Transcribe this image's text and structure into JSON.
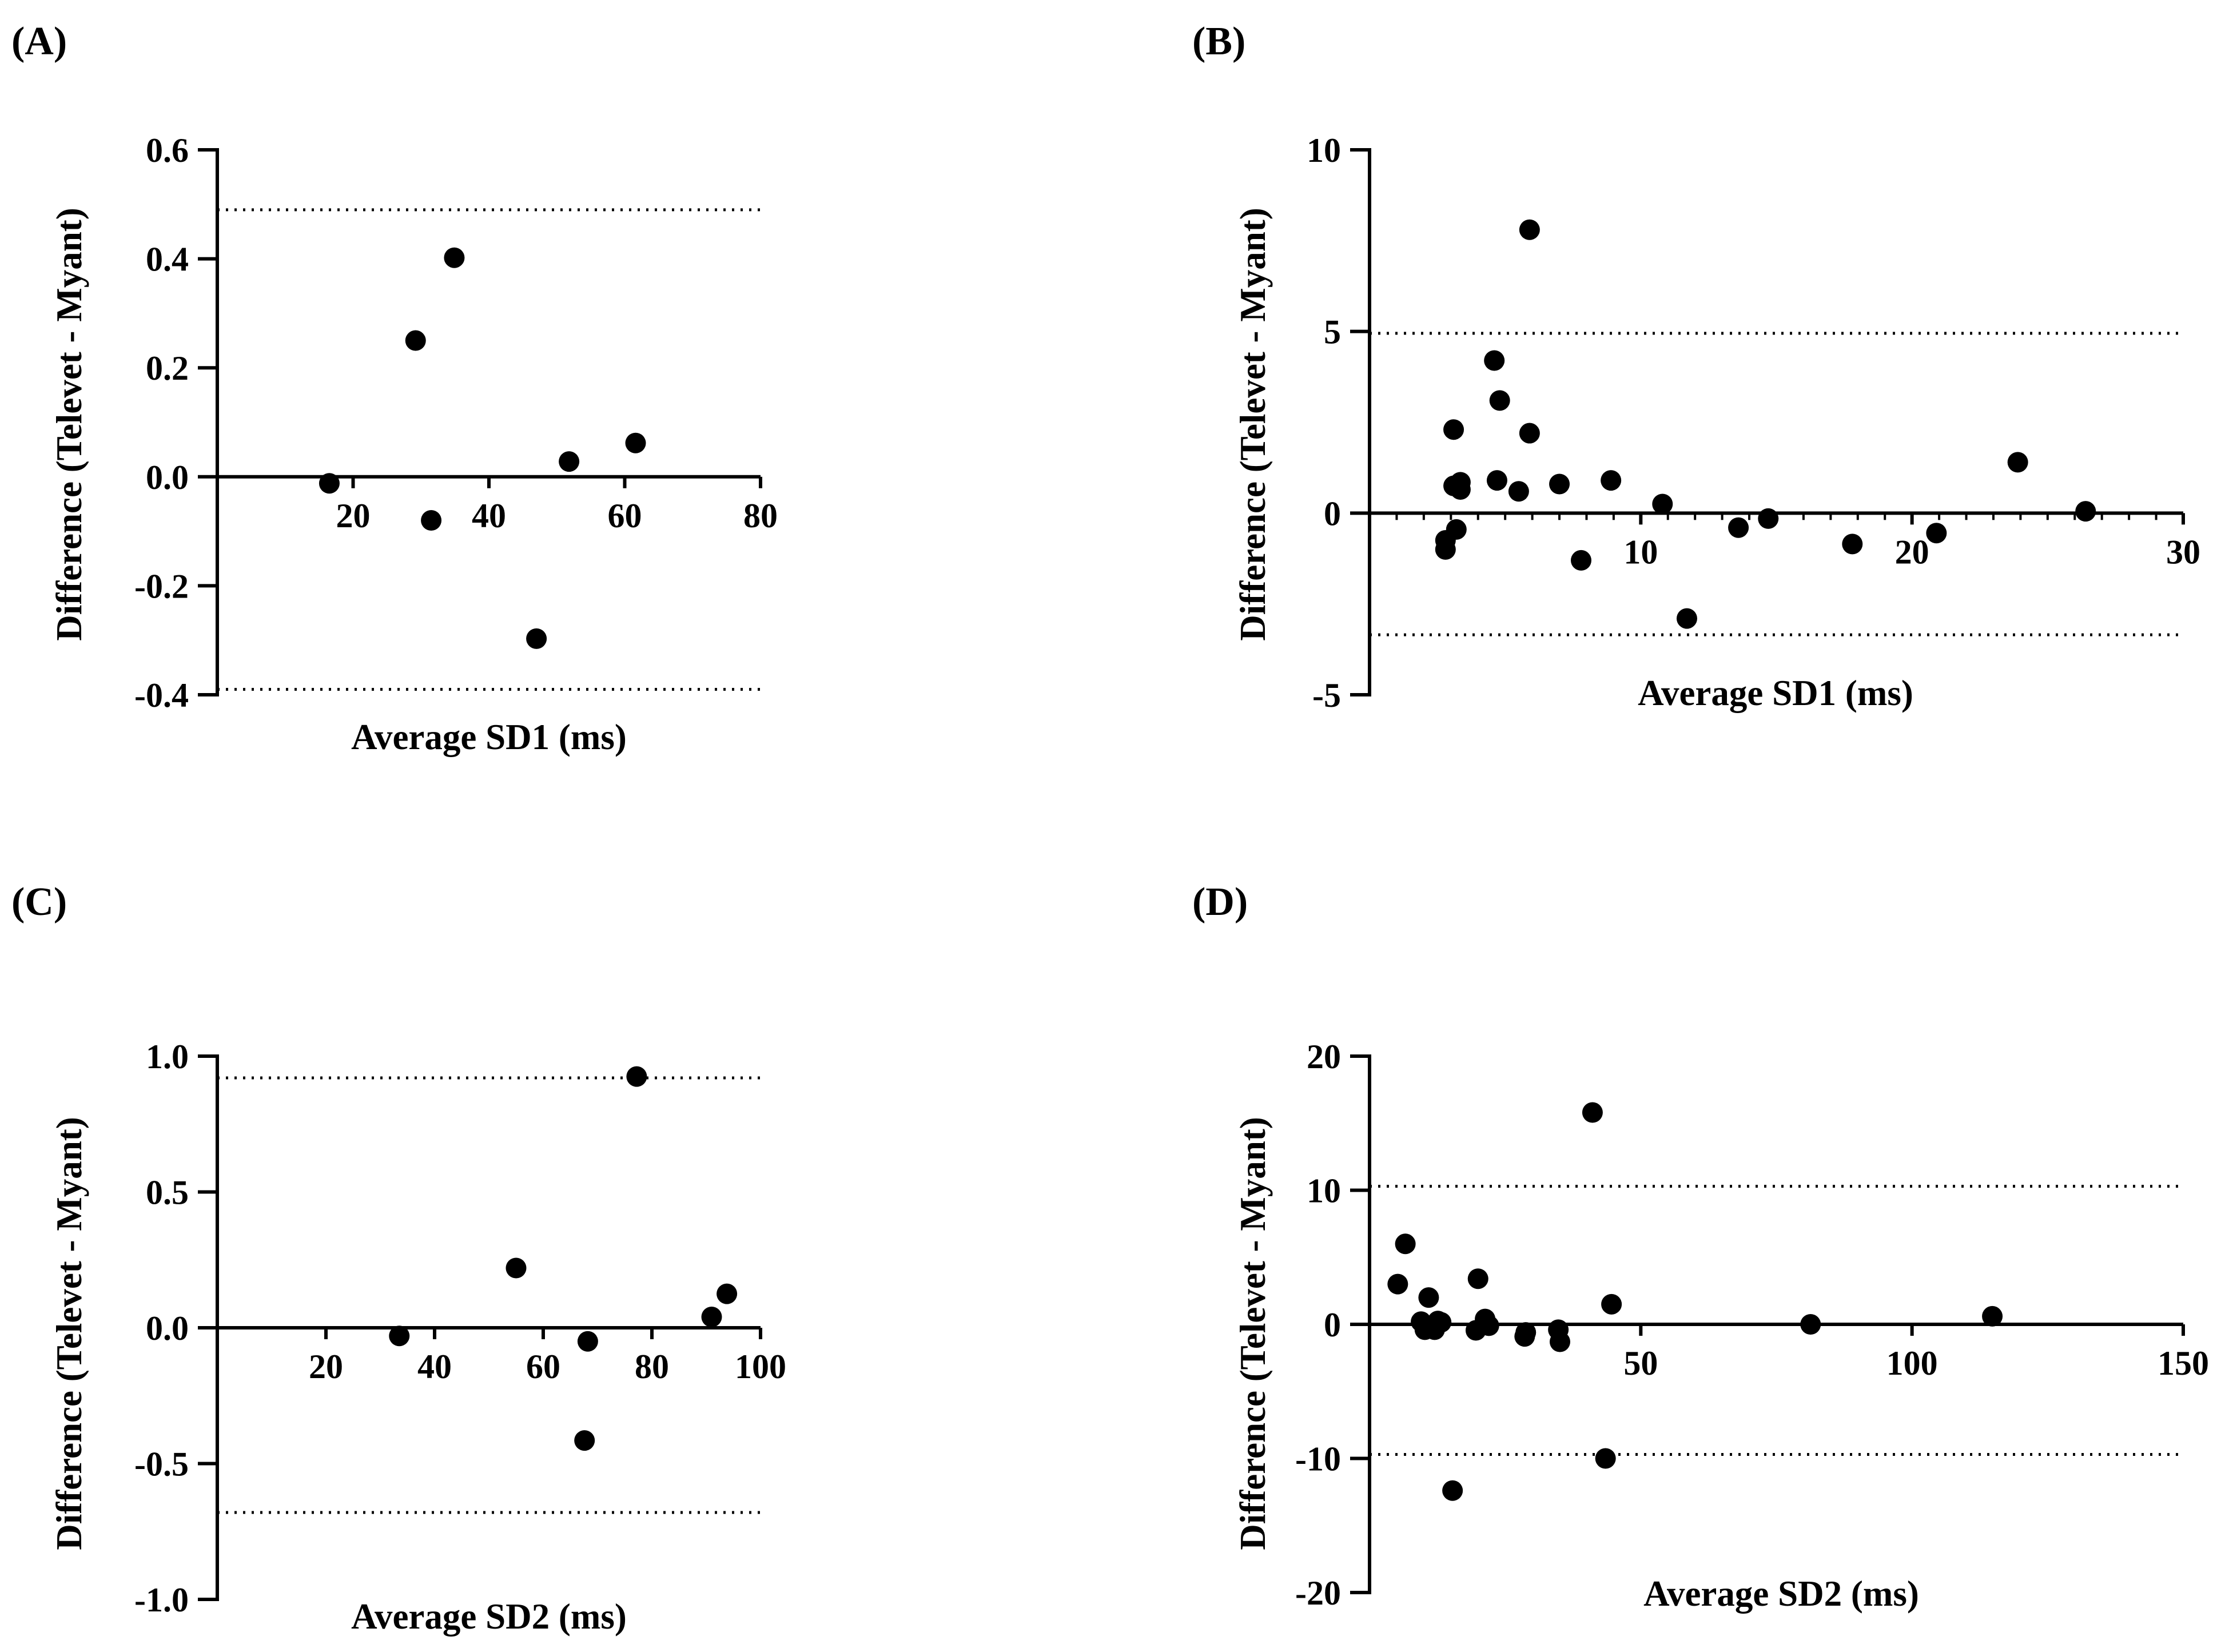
{
  "figure": {
    "background": "#ffffff",
    "ink": "#000000"
  },
  "chart_data": [
    {
      "panel": "(A)",
      "type": "scatter",
      "xlabel": "Average SD1 (ms)",
      "ylabel": "Difference (Televet - Myant)",
      "xlim": [
        0,
        80
      ],
      "ylim": [
        -0.4,
        0.6
      ],
      "xticks": [
        20,
        40,
        60,
        80
      ],
      "xtick_labels": [
        "20",
        "40",
        "60",
        "80"
      ],
      "yticks": [
        -0.4,
        -0.2,
        0.0,
        0.2,
        0.4,
        0.6
      ],
      "ytick_labels": [
        "-0.4",
        "-0.2",
        "0.0",
        "0.2",
        "0.4",
        "0.6"
      ],
      "minor_xticks": [],
      "reference_lines": {
        "bias": 0.0,
        "upper_loa": 0.49,
        "lower_loa": -0.39
      },
      "points": [
        {
          "x": 16.5,
          "y": -0.012
        },
        {
          "x": 29.2,
          "y": 0.25
        },
        {
          "x": 34.9,
          "y": 0.402
        },
        {
          "x": 31.5,
          "y": -0.08
        },
        {
          "x": 47.0,
          "y": -0.297
        },
        {
          "x": 51.8,
          "y": 0.028
        },
        {
          "x": 61.6,
          "y": 0.062
        }
      ]
    },
    {
      "panel": "(B)",
      "type": "scatter",
      "xlabel": "Average SD1 (ms)",
      "ylabel": "Difference (Televet - Myant)",
      "xlim": [
        0,
        30
      ],
      "ylim": [
        -5,
        10
      ],
      "xticks": [
        10,
        20,
        30
      ],
      "xtick_labels": [
        "10",
        "20",
        "30"
      ],
      "yticks": [
        -5,
        0,
        5,
        10
      ],
      "ytick_labels": [
        "-5",
        "0",
        "5",
        "10"
      ],
      "minor_xticks": [
        1,
        2,
        3,
        4,
        5,
        6,
        7,
        8,
        9,
        11,
        12,
        13,
        14,
        15,
        16,
        17,
        18,
        19,
        21,
        22,
        23,
        24,
        25,
        26,
        27,
        28,
        29
      ],
      "reference_lines": {
        "bias": 0.0,
        "upper_loa": 4.95,
        "lower_loa": -3.35
      },
      "points": [
        {
          "x": 2.8,
          "y": -0.75
        },
        {
          "x": 2.8,
          "y": -1.0
        },
        {
          "x": 3.1,
          "y": 2.3
        },
        {
          "x": 3.1,
          "y": 0.75
        },
        {
          "x": 3.35,
          "y": 0.85
        },
        {
          "x": 3.35,
          "y": 0.65
        },
        {
          "x": 3.2,
          "y": -0.45
        },
        {
          "x": 4.6,
          "y": 4.2
        },
        {
          "x": 4.8,
          "y": 3.1
        },
        {
          "x": 4.7,
          "y": 0.9
        },
        {
          "x": 5.5,
          "y": 0.6
        },
        {
          "x": 5.9,
          "y": 7.8
        },
        {
          "x": 5.9,
          "y": 2.2
        },
        {
          "x": 7.0,
          "y": 0.8
        },
        {
          "x": 7.8,
          "y": -1.3
        },
        {
          "x": 8.9,
          "y": 0.9
        },
        {
          "x": 10.8,
          "y": 0.25
        },
        {
          "x": 11.7,
          "y": -2.9
        },
        {
          "x": 13.6,
          "y": -0.4
        },
        {
          "x": 14.7,
          "y": -0.15
        },
        {
          "x": 17.8,
          "y": -0.85
        },
        {
          "x": 20.9,
          "y": -0.55
        },
        {
          "x": 23.9,
          "y": 1.4
        },
        {
          "x": 26.4,
          "y": 0.05
        }
      ]
    },
    {
      "panel": "(C)",
      "type": "scatter",
      "xlabel": "Average SD2 (ms)",
      "ylabel": "Difference (Televet - Myant)",
      "xlim": [
        0,
        100
      ],
      "ylim": [
        -1.0,
        1.0
      ],
      "xticks": [
        20,
        40,
        60,
        80,
        100
      ],
      "xtick_labels": [
        "20",
        "40",
        "60",
        "80",
        "100"
      ],
      "yticks": [
        -1.0,
        -0.5,
        0.0,
        0.5,
        1.0
      ],
      "ytick_labels": [
        "-1.0",
        "-0.5",
        "0.0",
        "0.5",
        "1.0"
      ],
      "minor_xticks": [],
      "reference_lines": {
        "bias": 0.0,
        "upper_loa": 0.92,
        "lower_loa": -0.68
      },
      "points": [
        {
          "x": 33.5,
          "y": -0.03
        },
        {
          "x": 55.0,
          "y": 0.22
        },
        {
          "x": 68.2,
          "y": -0.05
        },
        {
          "x": 67.6,
          "y": -0.415
        },
        {
          "x": 77.2,
          "y": 0.925
        },
        {
          "x": 91.0,
          "y": 0.04
        },
        {
          "x": 93.8,
          "y": 0.125
        }
      ]
    },
    {
      "panel": "(D)",
      "type": "scatter",
      "xlabel": "Average SD2 (ms)",
      "ylabel": "Difference (Televet - Myant)",
      "xlim": [
        0,
        150
      ],
      "ylim": [
        -20,
        20
      ],
      "xticks": [
        50,
        100,
        150
      ],
      "xtick_labels": [
        "50",
        "100",
        "150"
      ],
      "yticks": [
        -20,
        -10,
        0,
        10,
        20
      ],
      "ytick_labels": [
        "-20",
        "-10",
        "0",
        "10",
        "20"
      ],
      "minor_xticks": [],
      "reference_lines": {
        "bias": 0.0,
        "upper_loa": 10.3,
        "lower_loa": -9.7
      },
      "points": [
        {
          "x": 5.2,
          "y": 3.0
        },
        {
          "x": 6.6,
          "y": 6.0
        },
        {
          "x": 10.9,
          "y": 2.0
        },
        {
          "x": 9.5,
          "y": 0.2
        },
        {
          "x": 10.2,
          "y": -0.4
        },
        {
          "x": 11.3,
          "y": -0.1
        },
        {
          "x": 12.0,
          "y": -0.4
        },
        {
          "x": 12.6,
          "y": 0.25
        },
        {
          "x": 13.2,
          "y": 0.15
        },
        {
          "x": 15.3,
          "y": -12.4
        },
        {
          "x": 20.0,
          "y": 3.4
        },
        {
          "x": 19.6,
          "y": -0.45
        },
        {
          "x": 21.3,
          "y": 0.4
        },
        {
          "x": 22.0,
          "y": -0.1
        },
        {
          "x": 28.8,
          "y": -0.6
        },
        {
          "x": 28.6,
          "y": -0.9
        },
        {
          "x": 34.8,
          "y": -0.4
        },
        {
          "x": 35.1,
          "y": -1.3
        },
        {
          "x": 41.1,
          "y": 15.8
        },
        {
          "x": 43.5,
          "y": -10.0
        },
        {
          "x": 44.6,
          "y": 1.5
        },
        {
          "x": 81.3,
          "y": 0.0
        },
        {
          "x": 114.8,
          "y": 0.6
        }
      ]
    }
  ]
}
